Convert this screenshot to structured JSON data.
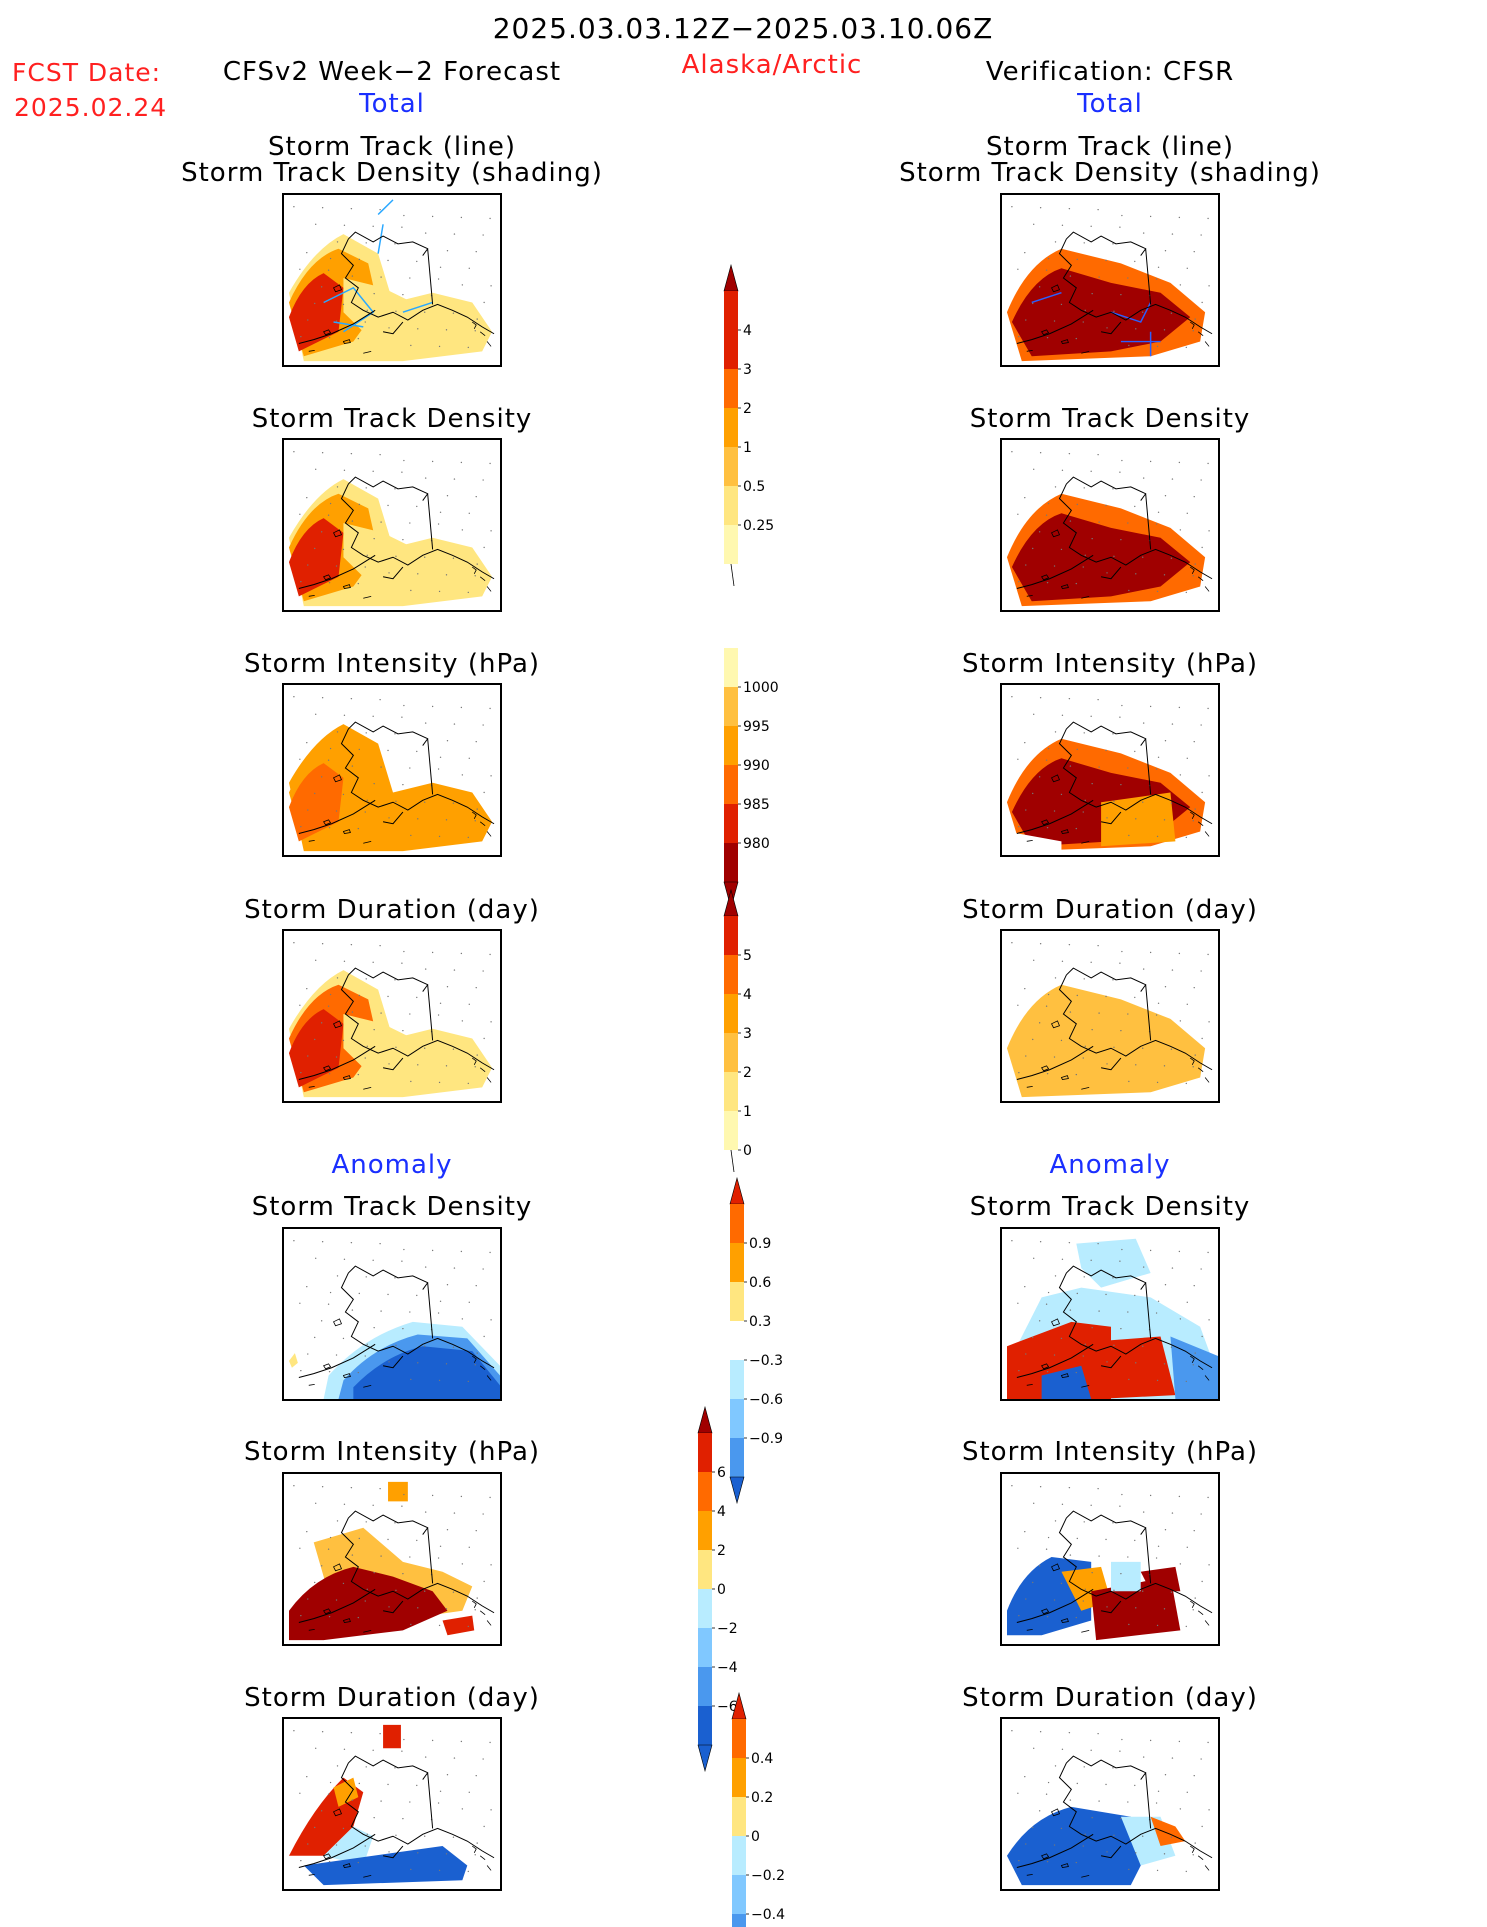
{
  "header": {
    "period": "2025.03.03.12Z−2025.03.10.06Z",
    "fcst_date_label": "FCST Date:",
    "fcst_date_value": "2025.02.24",
    "forecast_title": "CFSv2 Week−2 Forecast",
    "region": "Alaska/Arctic",
    "verification_title": "Verification: CFSR"
  },
  "sections": {
    "total_left": "Total",
    "total_right": "Total",
    "anomaly_left": "Anomaly",
    "anomaly_right": "Anomaly"
  },
  "panel_titles": {
    "track_line": "Storm Track (line)",
    "track_density_shading": "Storm Track Density (shading)",
    "track_density": "Storm Track Density",
    "intensity": "Storm Intensity (hPa)",
    "duration": "Storm Duration (day)"
  },
  "colorbars": {
    "density_total": [
      "4",
      "3",
      "2",
      "1",
      "0.5",
      "0.25"
    ],
    "intensity_total": [
      "1000",
      "995",
      "990",
      "985",
      "980"
    ],
    "duration_total": [
      "5",
      "4",
      "3",
      "2",
      "1",
      "0"
    ],
    "density_anomaly": [
      "0.9",
      "0.6",
      "0.3",
      "−0.3",
      "−0.6",
      "−0.9"
    ],
    "intensity_anomaly": [
      "6",
      "4",
      "2",
      "0",
      "−2",
      "−4",
      "−6"
    ],
    "duration_anomaly": [
      "0.4",
      "0.2",
      "0",
      "−0.2",
      "−0.4"
    ]
  },
  "colors": {
    "title_red": "#ff2020",
    "title_blue": "#1a2fff",
    "warm_scale": [
      "#fff8b0",
      "#ffe680",
      "#ffc040",
      "#ffa000",
      "#ff6a00",
      "#e02000",
      "#a00000"
    ],
    "cool_scale": [
      "#b8ecff",
      "#80c8ff",
      "#4a98ee",
      "#1a60d0"
    ]
  }
}
